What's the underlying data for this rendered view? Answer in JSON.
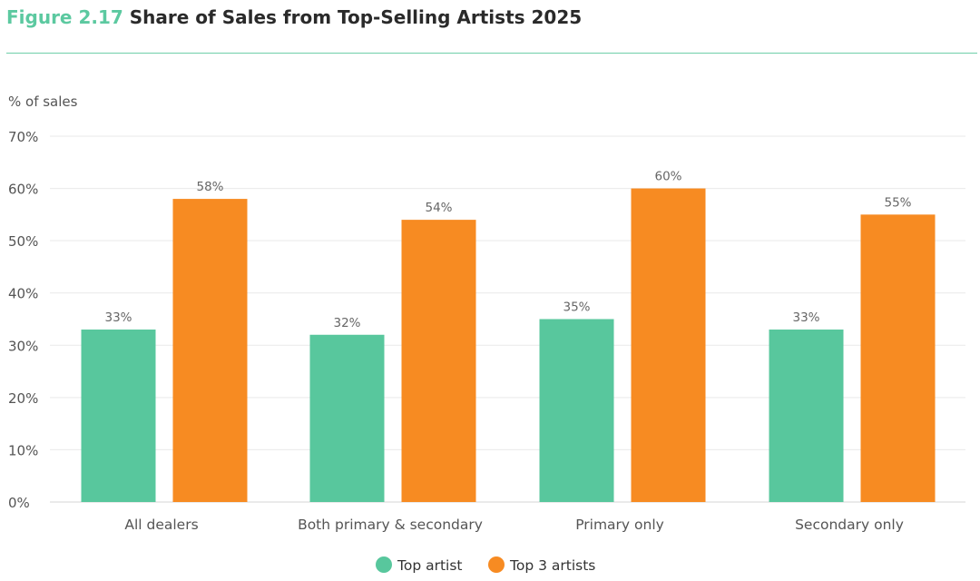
{
  "header": {
    "figure_number": "Figure 2.17",
    "title": "Share of Sales from Top-Selling Artists 2025"
  },
  "colors": {
    "accent": "#5cc9a0",
    "series_top_artist": "#58c79d",
    "series_top3": "#f78b22",
    "grid": "#e9e9e9",
    "text": "#555555"
  },
  "chart_data": {
    "type": "bar",
    "title": "Share of Sales from Top-Selling Artists 2025",
    "xlabel": "",
    "ylabel": "% of sales",
    "ylim": [
      0,
      70
    ],
    "yticks": [
      "0%",
      "10%",
      "20%",
      "30%",
      "40%",
      "50%",
      "60%",
      "70%"
    ],
    "grid": true,
    "legend_position": "bottom-center",
    "categories": [
      "All dealers",
      "Both primary & secondary",
      "Primary only",
      "Secondary only"
    ],
    "series": [
      {
        "name": "Top artist",
        "values": [
          33,
          32,
          35,
          33
        ],
        "labels": [
          "33%",
          "32%",
          "35%",
          "33%"
        ]
      },
      {
        "name": "Top 3 artists",
        "values": [
          58,
          54,
          60,
          55
        ],
        "labels": [
          "58%",
          "54%",
          "60%",
          "55%"
        ]
      }
    ]
  }
}
